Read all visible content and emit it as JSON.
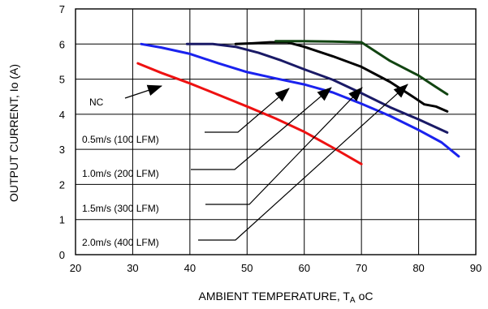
{
  "chart_data": {
    "type": "line",
    "xlabel": "AMBIENT TEMPERATURE, T",
    "xlabel_sub": "A",
    "xlabel_unit": "oC",
    "ylabel": "OUTPUT CURRENT, Io  (A)",
    "xlim": [
      20,
      90
    ],
    "ylim": [
      0,
      7
    ],
    "xticks": [
      20,
      30,
      40,
      50,
      60,
      70,
      80,
      90
    ],
    "yticks": [
      0,
      1,
      2,
      3,
      4,
      5,
      6,
      7
    ],
    "grid": true,
    "colors": {
      "nc": "#ee1111",
      "lfm100": "#1a22ee",
      "lfm200": "#1a1a66",
      "lfm300": "#000000",
      "lfm400": "#114411",
      "axis": "#000000",
      "annotation": "#000000"
    },
    "series": [
      {
        "name": "NC",
        "key": "nc",
        "x": [
          30.9,
          35,
          40,
          45,
          50,
          55,
          60,
          65,
          70
        ],
        "y": [
          5.45,
          5.18,
          4.88,
          4.55,
          4.22,
          3.88,
          3.5,
          3.05,
          2.58
        ]
      },
      {
        "name": "0.5m/s (100 LFM)",
        "key": "lfm100",
        "x": [
          31.5,
          35,
          40,
          45,
          50,
          55,
          60,
          65,
          70,
          75,
          80,
          84,
          87
        ],
        "y": [
          6.0,
          5.9,
          5.72,
          5.45,
          5.2,
          5.02,
          4.85,
          4.62,
          4.3,
          3.95,
          3.55,
          3.2,
          2.8
        ]
      },
      {
        "name": "1.0m/s (200 LFM)",
        "key": "lfm200",
        "x": [
          39.5,
          44,
          48,
          52,
          56,
          60,
          65,
          70,
          75,
          80,
          85
        ],
        "y": [
          6.0,
          6.0,
          5.92,
          5.75,
          5.53,
          5.28,
          4.98,
          4.6,
          4.2,
          3.85,
          3.48
        ]
      },
      {
        "name": "1.5m/s (300 LFM)",
        "key": "lfm300",
        "x": [
          48,
          51,
          54,
          57,
          60,
          65,
          70,
          75,
          79,
          81,
          83,
          85
        ],
        "y": [
          6.0,
          6.02,
          6.05,
          6.05,
          5.92,
          5.65,
          5.35,
          4.92,
          4.5,
          4.28,
          4.22,
          4.08
        ]
      },
      {
        "name": "2.0m/s (400 LFM)",
        "key": "lfm400",
        "x": [
          55,
          60,
          65,
          70,
          75,
          80,
          83,
          85
        ],
        "y": [
          6.08,
          6.08,
          6.07,
          6.05,
          5.52,
          5.1,
          4.78,
          4.57
        ]
      }
    ],
    "annotations": [
      {
        "text": "NC",
        "series": "nc"
      },
      {
        "text": "0.5m/s (100 LFM)",
        "series": "lfm100"
      },
      {
        "text": "1.0m/s (200 LFM)",
        "series": "lfm200"
      },
      {
        "text": "1.5m/s (300 LFM)",
        "series": "lfm300"
      },
      {
        "text": "2.0m/s (400 LFM)",
        "series": "lfm400"
      }
    ]
  }
}
